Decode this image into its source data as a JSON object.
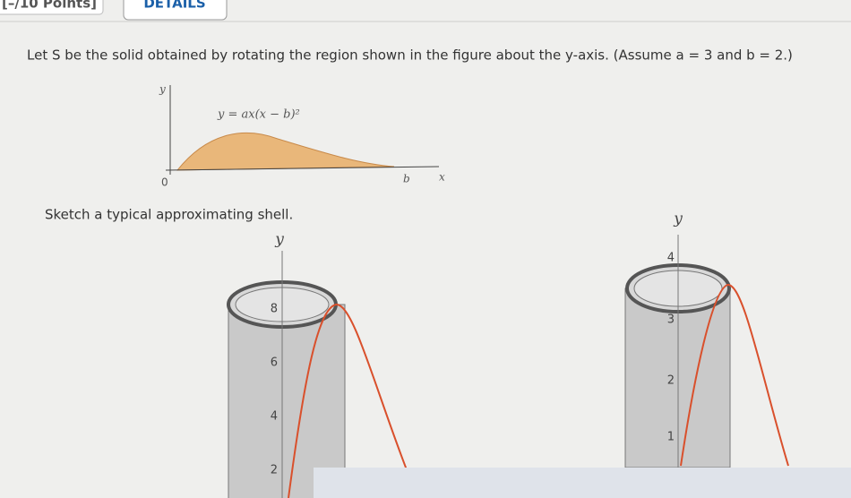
{
  "header": {
    "points": "[–/10 Points]",
    "details": "DETAILS"
  },
  "problem": {
    "text": "Let S be the solid obtained by rotating the region shown in the figure about the y-axis. (Assume a = 3 and b = 2.)"
  },
  "region_figure": {
    "y_axis": "y",
    "x_axis": "x",
    "origin": "0",
    "b_label": "b",
    "equation": "y = ax(x − b)²"
  },
  "prompt": "Sketch a typical approximating shell.",
  "shell_left": {
    "axis": "y",
    "ticks": [
      "8",
      "6",
      "4",
      "2"
    ]
  },
  "shell_right": {
    "axis": "y",
    "ticks": [
      "4",
      "3",
      "2",
      "1"
    ]
  }
}
